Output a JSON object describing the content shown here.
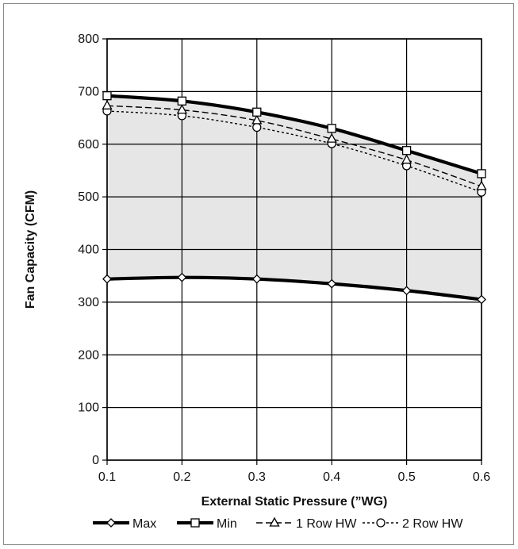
{
  "chart_data": {
    "type": "line",
    "xlabel": "External Static Pressure (”WG)",
    "ylabel": "Fan Capacity (CFM)",
    "xlim": [
      0.1,
      0.6
    ],
    "ylim": [
      0,
      800
    ],
    "x_ticks": [
      "0.1",
      "0.2",
      "0.3",
      "0.4",
      "0.5",
      "0.6"
    ],
    "y_ticks": [
      "0",
      "100",
      "200",
      "300",
      "400",
      "500",
      "600",
      "700",
      "800"
    ],
    "grid": true,
    "legend_position": "bottom",
    "shaded_region": {
      "between": [
        "Max",
        "Min"
      ],
      "color": "#e6e6e6"
    },
    "x": [
      0.1,
      0.2,
      0.3,
      0.4,
      0.5,
      0.6
    ],
    "series": [
      {
        "name": "Max",
        "marker": "diamond",
        "line": "solid-thick",
        "values": [
          344,
          347,
          344,
          335,
          322,
          305
        ]
      },
      {
        "name": "Min",
        "marker": "square",
        "line": "solid-thick",
        "values": [
          692,
          682,
          661,
          630,
          588,
          544
        ]
      },
      {
        "name": "1 Row HW",
        "marker": "triangle",
        "line": "dashed",
        "values": [
          673,
          665,
          645,
          610,
          570,
          520
        ]
      },
      {
        "name": "2 Row HW",
        "marker": "circle",
        "line": "dotted",
        "values": [
          663,
          654,
          632,
          601,
          559,
          509
        ]
      }
    ]
  }
}
